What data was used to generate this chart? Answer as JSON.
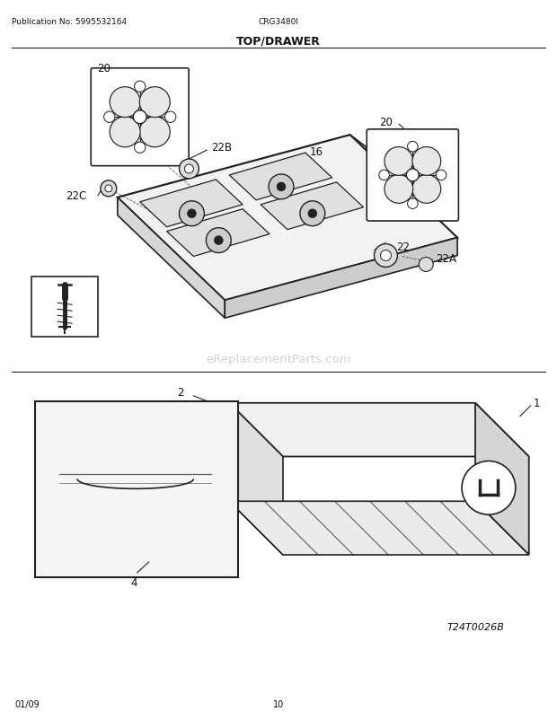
{
  "title": "TOP/DRAWER",
  "pub_no": "Publication No: 5995532164",
  "model": "CRG3480I",
  "date": "01/09",
  "page": "10",
  "watermark": "eReplacementParts.com",
  "diagram_id": "T24T0026B",
  "bg_color": "#ffffff",
  "line_color": "#222222",
  "text_color": "#111111",
  "watermark_color": "#cccccc"
}
